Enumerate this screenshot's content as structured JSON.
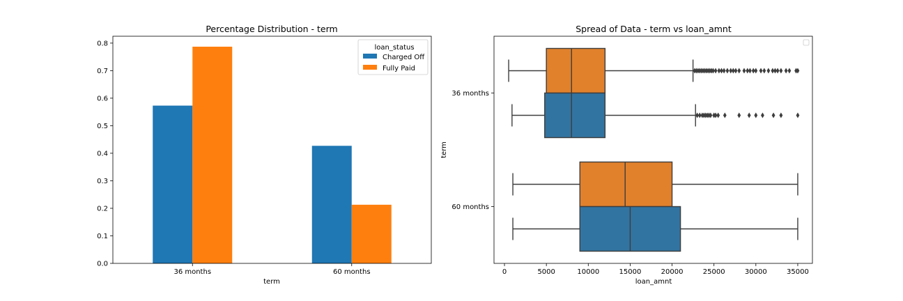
{
  "chart_data": [
    {
      "type": "bar",
      "title": "Percentage Distribution - term",
      "xlabel": "term",
      "ylabel": "",
      "categories": [
        "36 months",
        "60 months"
      ],
      "series": [
        {
          "name": "Charged Off",
          "values": [
            0.573,
            0.427
          ],
          "color": "#1f77b4"
        },
        {
          "name": "Fully Paid",
          "values": [
            0.787,
            0.213
          ],
          "color": "#ff7f0e"
        }
      ],
      "ylim": [
        0,
        0.825
      ],
      "yticks": [
        0.0,
        0.1,
        0.2,
        0.3,
        0.4,
        0.5,
        0.6,
        0.7,
        0.8
      ],
      "ytick_labels": [
        "0.0",
        "0.1",
        "0.2",
        "0.3",
        "0.4",
        "0.5",
        "0.6",
        "0.7",
        "0.8"
      ],
      "legend": {
        "title": "loan_status",
        "position": "top-right"
      },
      "grid": false
    },
    {
      "type": "box",
      "orientation": "horizontal",
      "title": "Spread of Data - term vs loan_amnt",
      "xlabel": "loan_amnt",
      "ylabel": "term",
      "categories": [
        "36 months",
        "60 months"
      ],
      "xlim": [
        -1250,
        36750
      ],
      "xticks": [
        0,
        5000,
        10000,
        15000,
        20000,
        25000,
        30000,
        35000
      ],
      "xtick_labels": [
        "0",
        "5000",
        "10000",
        "15000",
        "20000",
        "25000",
        "30000",
        "35000"
      ],
      "legend": {
        "position": "top-right",
        "entries": []
      },
      "grid": false,
      "series": [
        {
          "color": "#e1812c",
          "boxes": [
            {
              "category": "36 months",
              "whislo": 500,
              "q1": 5000,
              "med": 8000,
              "q3": 12000,
              "whishi": 22500,
              "fliers": [
                22700,
                22900,
                23100,
                23300,
                23500,
                23700,
                23900,
                24100,
                24300,
                24500,
                24700,
                24900,
                25200,
                25600,
                25900,
                26200,
                26600,
                27000,
                27300,
                27600,
                28000,
                28600,
                29000,
                29300,
                29700,
                30000,
                30600,
                31000,
                31500,
                32000,
                32300,
                32600,
                33000,
                33600,
                34000,
                34800,
                35000
              ]
            },
            {
              "category": "60 months",
              "whislo": 1000,
              "q1": 9000,
              "med": 14400,
              "q3": 20000,
              "whishi": 35000,
              "fliers": []
            }
          ]
        },
        {
          "color": "#3274a1",
          "boxes": [
            {
              "category": "36 months",
              "whislo": 900,
              "q1": 4800,
              "med": 8000,
              "q3": 12000,
              "whishi": 22800,
              "fliers": [
                23000,
                23300,
                23600,
                23800,
                24000,
                24200,
                24400,
                24600,
                25000,
                25200,
                25500,
                26300,
                28000,
                29200,
                30000,
                30800,
                32100,
                33000,
                35000
              ]
            },
            {
              "category": "60 months",
              "whislo": 1000,
              "q1": 9000,
              "med": 15000,
              "q3": 21000,
              "whishi": 35000,
              "fliers": []
            }
          ]
        }
      ]
    }
  ]
}
